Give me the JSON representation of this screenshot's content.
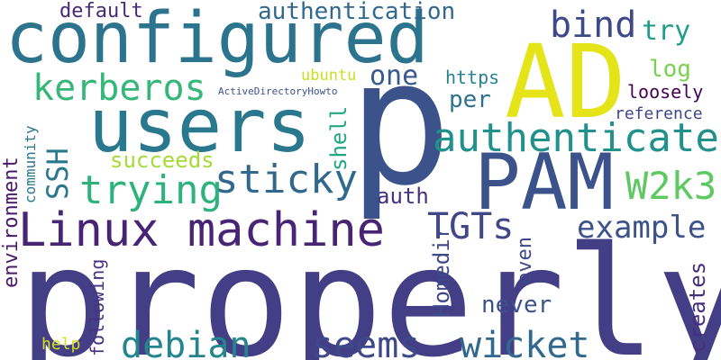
{
  "words": [
    {
      "id": "properly",
      "text": "properly",
      "color": "#433e85"
    },
    {
      "id": "p",
      "text": "p",
      "color": "#3b528b"
    },
    {
      "id": "AD",
      "text": "AD",
      "color": "#e5e419"
    },
    {
      "id": "configured",
      "text": "configured",
      "color": "#2c738e"
    },
    {
      "id": "users",
      "text": "users",
      "color": "#2a788e"
    },
    {
      "id": "PAM",
      "text": "PAM",
      "color": "#3b528b"
    },
    {
      "id": "linux-machine",
      "text": "Linux machine",
      "color": "#482475"
    },
    {
      "id": "kerberos",
      "text": "kerberos",
      "color": "#35b779"
    },
    {
      "id": "authenticate",
      "text": "authenticate",
      "color": "#21918c"
    },
    {
      "id": "trying",
      "text": "trying",
      "color": "#2db27d"
    },
    {
      "id": "sticky",
      "text": "sticky",
      "color": "#31688e"
    },
    {
      "id": "debian",
      "text": "debian",
      "color": "#25858e"
    },
    {
      "id": "seems",
      "text": "seems",
      "color": "#3e4989"
    },
    {
      "id": "wicket",
      "text": "wicket",
      "color": "#31688e"
    },
    {
      "id": "bind",
      "text": "bind",
      "color": "#3e4989"
    },
    {
      "id": "W2k3",
      "text": "W2k3",
      "color": "#5ec962"
    },
    {
      "id": "TGTs",
      "text": "TGTs",
      "color": "#404688"
    },
    {
      "id": "example",
      "text": "example",
      "color": "#3b528b"
    },
    {
      "id": "authentication",
      "text": "authentication",
      "color": "#31688e"
    },
    {
      "id": "one",
      "text": "one",
      "color": "#38598c"
    },
    {
      "id": "default",
      "text": "default",
      "color": "#482878"
    },
    {
      "id": "try",
      "text": "try",
      "color": "#1f9e89"
    },
    {
      "id": "SSH",
      "text": "SSH",
      "color": "#2a788e"
    },
    {
      "id": "succeeds",
      "text": "succeeds",
      "color": "#a5db36"
    },
    {
      "id": "environment",
      "text": "environment",
      "color": "#48186a"
    },
    {
      "id": "shell",
      "text": "shell",
      "color": "#22a785"
    },
    {
      "id": "auth",
      "text": "auth",
      "color": "#46327e"
    },
    {
      "id": "log",
      "text": "log",
      "color": "#7ad151"
    },
    {
      "id": "loosely",
      "text": "loosely",
      "color": "#440154"
    },
    {
      "id": "reference",
      "text": "reference",
      "color": "#3f4788"
    },
    {
      "id": "https",
      "text": "https",
      "color": "#26828e"
    },
    {
      "id": "per",
      "text": "per",
      "color": "#2c728e"
    },
    {
      "id": "ubuntu",
      "text": "ubuntu",
      "color": "#c8e020"
    },
    {
      "id": "activedirectoryhowto",
      "text": "ActiveDirectoryHowto",
      "color": "#3b528b"
    },
    {
      "id": "community",
      "text": "community",
      "color": "#2a788e"
    },
    {
      "id": "homedir",
      "text": "Homedir",
      "color": "#3e4989"
    },
    {
      "id": "even",
      "text": "even",
      "color": "#3e4989"
    },
    {
      "id": "never",
      "text": "never",
      "color": "#3b528b"
    },
    {
      "id": "creates",
      "text": "creates",
      "color": "#46307e"
    },
    {
      "id": "following",
      "text": "following",
      "color": "#46337f"
    },
    {
      "id": "help",
      "text": "help",
      "color": "#d2e21b"
    }
  ]
}
